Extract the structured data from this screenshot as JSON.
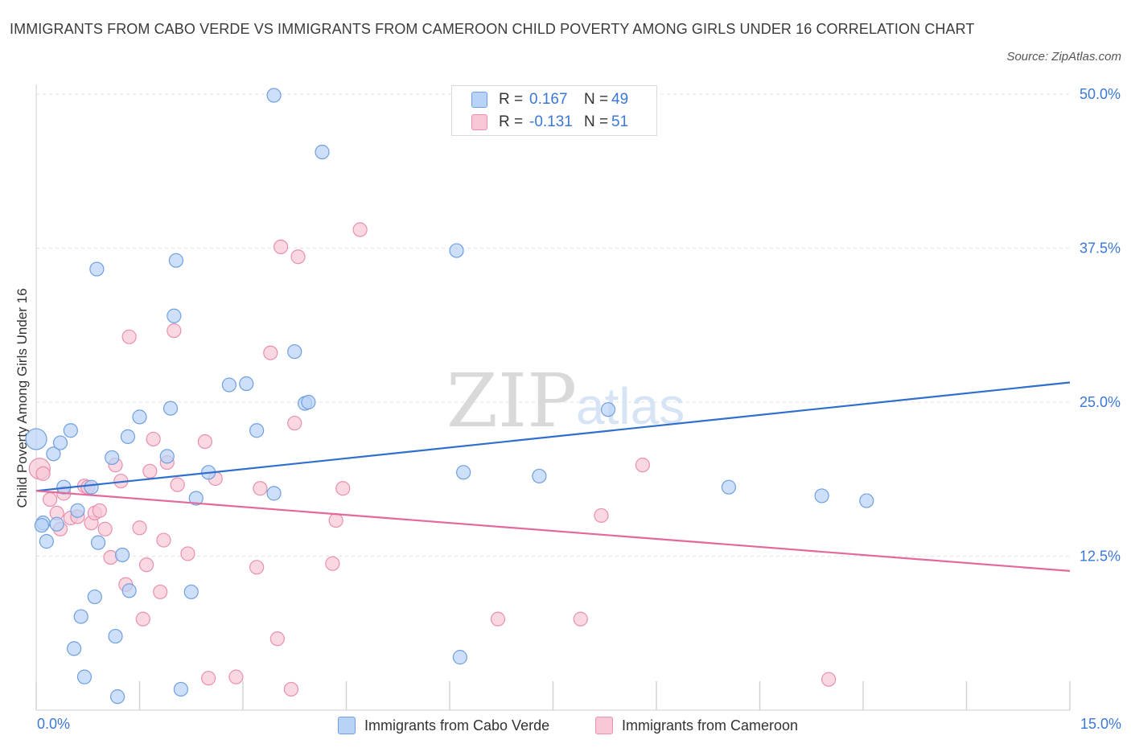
{
  "title": "IMMIGRANTS FROM CABO VERDE VS IMMIGRANTS FROM CAMEROON CHILD POVERTY AMONG GIRLS UNDER 16 CORRELATION CHART",
  "source": "Source: ZipAtlas.com",
  "watermark": {
    "zip": "ZIP",
    "atlas": "atlas"
  },
  "legend": {
    "r_label": "R =",
    "n_label": "N =",
    "rows": [
      {
        "r": "0.167",
        "n": "49"
      },
      {
        "r": "-0.131",
        "n": "51"
      }
    ]
  },
  "colors": {
    "blue_fill": "#b9d3f7",
    "blue_stroke": "#6f9fe0",
    "blue_line": "#2f6fcd",
    "pink_fill": "#f8c7d6",
    "pink_stroke": "#ea8fae",
    "pink_line": "#e2699a",
    "grid": "#e3e3e3",
    "axis_text": "#3b78d8"
  },
  "chart_data": {
    "type": "scatter",
    "title": "IMMIGRANTS FROM CABO VERDE VS IMMIGRANTS FROM CAMEROON CHILD POVERTY AMONG GIRLS UNDER 16 CORRELATION CHART",
    "xlabel": "",
    "ylabel": "Child Poverty Among Girls Under 16",
    "xlim": [
      0,
      15
    ],
    "ylim": [
      0,
      50
    ],
    "x_tick_labels": [
      "0.0%",
      "15.0%"
    ],
    "y_ticks": [
      12.5,
      25.0,
      37.5,
      50.0
    ],
    "y_tick_labels": [
      "12.5%",
      "25.0%",
      "37.5%",
      "50.0%"
    ],
    "grid": true,
    "series": [
      {
        "name": "Immigrants from Cabo Verde",
        "color": "#6f9fe0",
        "trend": {
          "x": [
            0,
            15
          ],
          "y": [
            17.8,
            26.6
          ]
        },
        "points": [
          {
            "x": 0.0,
            "y": 22.0
          },
          {
            "x": 0.1,
            "y": 15.2
          },
          {
            "x": 0.15,
            "y": 13.7
          },
          {
            "x": 0.25,
            "y": 20.8
          },
          {
            "x": 0.35,
            "y": 21.7
          },
          {
            "x": 0.4,
            "y": 18.1
          },
          {
            "x": 0.5,
            "y": 22.7
          },
          {
            "x": 0.55,
            "y": 5.0
          },
          {
            "x": 0.6,
            "y": 16.2
          },
          {
            "x": 0.65,
            "y": 7.6
          },
          {
            "x": 0.7,
            "y": 2.7
          },
          {
            "x": 0.8,
            "y": 18.1
          },
          {
            "x": 0.85,
            "y": 9.2
          },
          {
            "x": 0.88,
            "y": 35.8
          },
          {
            "x": 0.9,
            "y": 13.6
          },
          {
            "x": 1.1,
            "y": 20.5
          },
          {
            "x": 1.15,
            "y": 6.0
          },
          {
            "x": 1.18,
            "y": 1.1
          },
          {
            "x": 1.25,
            "y": 12.6
          },
          {
            "x": 1.33,
            "y": 22.2
          },
          {
            "x": 1.35,
            "y": 9.7
          },
          {
            "x": 1.5,
            "y": 23.8
          },
          {
            "x": 1.9,
            "y": 20.6
          },
          {
            "x": 1.95,
            "y": 24.5
          },
          {
            "x": 2.0,
            "y": 32.0
          },
          {
            "x": 2.03,
            "y": 36.5
          },
          {
            "x": 2.1,
            "y": 1.7
          },
          {
            "x": 2.25,
            "y": 9.6
          },
          {
            "x": 2.32,
            "y": 17.2
          },
          {
            "x": 2.5,
            "y": 19.3
          },
          {
            "x": 2.8,
            "y": 26.4
          },
          {
            "x": 3.05,
            "y": 26.5
          },
          {
            "x": 3.2,
            "y": 22.7
          },
          {
            "x": 3.45,
            "y": 17.6
          },
          {
            "x": 3.45,
            "y": 49.9
          },
          {
            "x": 3.75,
            "y": 29.1
          },
          {
            "x": 3.9,
            "y": 24.9
          },
          {
            "x": 3.95,
            "y": 25.0
          },
          {
            "x": 4.15,
            "y": 45.3
          },
          {
            "x": 6.1,
            "y": 37.3
          },
          {
            "x": 6.15,
            "y": 4.3
          },
          {
            "x": 6.2,
            "y": 19.3
          },
          {
            "x": 7.3,
            "y": 19.0
          },
          {
            "x": 8.3,
            "y": 24.4
          },
          {
            "x": 10.05,
            "y": 18.1
          },
          {
            "x": 11.4,
            "y": 17.4
          },
          {
            "x": 12.05,
            "y": 17.0
          },
          {
            "x": 0.08,
            "y": 15.0
          },
          {
            "x": 0.3,
            "y": 15.1
          }
        ]
      },
      {
        "name": "Immigrants from Cameroon",
        "color": "#ea8fae",
        "trend": {
          "x": [
            0,
            15
          ],
          "y": [
            17.8,
            11.3
          ]
        },
        "points": [
          {
            "x": 0.05,
            "y": 19.6
          },
          {
            "x": 0.1,
            "y": 19.2
          },
          {
            "x": 0.2,
            "y": 17.1
          },
          {
            "x": 0.3,
            "y": 16.0
          },
          {
            "x": 0.35,
            "y": 14.7
          },
          {
            "x": 0.4,
            "y": 17.6
          },
          {
            "x": 0.5,
            "y": 15.6
          },
          {
            "x": 0.6,
            "y": 15.7
          },
          {
            "x": 0.7,
            "y": 18.2
          },
          {
            "x": 0.75,
            "y": 18.1
          },
          {
            "x": 0.8,
            "y": 15.2
          },
          {
            "x": 0.85,
            "y": 16.0
          },
          {
            "x": 0.92,
            "y": 16.2
          },
          {
            "x": 1.0,
            "y": 14.7
          },
          {
            "x": 1.08,
            "y": 12.4
          },
          {
            "x": 1.15,
            "y": 19.9
          },
          {
            "x": 1.23,
            "y": 18.6
          },
          {
            "x": 1.3,
            "y": 10.2
          },
          {
            "x": 1.35,
            "y": 30.3
          },
          {
            "x": 1.5,
            "y": 14.8
          },
          {
            "x": 1.55,
            "y": 7.4
          },
          {
            "x": 1.6,
            "y": 11.8
          },
          {
            "x": 1.65,
            "y": 19.4
          },
          {
            "x": 1.7,
            "y": 22.0
          },
          {
            "x": 1.8,
            "y": 9.6
          },
          {
            "x": 1.85,
            "y": 13.8
          },
          {
            "x": 1.9,
            "y": 20.1
          },
          {
            "x": 2.0,
            "y": 30.8
          },
          {
            "x": 2.05,
            "y": 18.3
          },
          {
            "x": 2.2,
            "y": 12.7
          },
          {
            "x": 2.45,
            "y": 21.8
          },
          {
            "x": 2.5,
            "y": 2.6
          },
          {
            "x": 2.6,
            "y": 18.8
          },
          {
            "x": 2.9,
            "y": 2.7
          },
          {
            "x": 3.2,
            "y": 11.6
          },
          {
            "x": 3.25,
            "y": 18.0
          },
          {
            "x": 3.4,
            "y": 29.0
          },
          {
            "x": 3.5,
            "y": 5.8
          },
          {
            "x": 3.55,
            "y": 37.6
          },
          {
            "x": 3.7,
            "y": 1.7
          },
          {
            "x": 3.75,
            "y": 23.3
          },
          {
            "x": 3.8,
            "y": 36.8
          },
          {
            "x": 4.3,
            "y": 11.9
          },
          {
            "x": 4.35,
            "y": 15.4
          },
          {
            "x": 4.45,
            "y": 18.0
          },
          {
            "x": 4.7,
            "y": 39.0
          },
          {
            "x": 6.7,
            "y": 7.4
          },
          {
            "x": 7.9,
            "y": 7.4
          },
          {
            "x": 8.2,
            "y": 15.8
          },
          {
            "x": 8.8,
            "y": 19.9
          },
          {
            "x": 11.5,
            "y": 2.5
          }
        ]
      }
    ]
  }
}
